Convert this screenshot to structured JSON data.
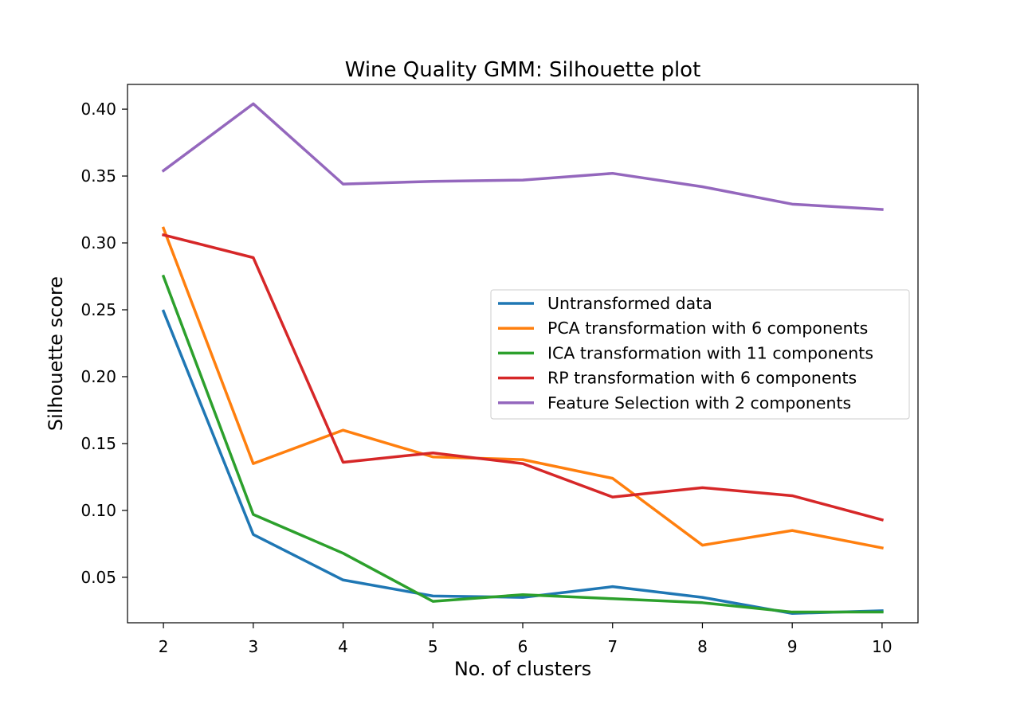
{
  "chart_data": {
    "type": "line",
    "title": "Wine Quality GMM: Silhouette plot",
    "xlabel": "No. of clusters",
    "ylabel": "Silhouette score",
    "x": [
      2,
      3,
      4,
      5,
      6,
      7,
      8,
      9,
      10
    ],
    "xlim": [
      1.6,
      10.4
    ],
    "ylim": [
      0.016,
      0.4185
    ],
    "x_ticks": [
      "2",
      "3",
      "4",
      "5",
      "6",
      "7",
      "8",
      "9",
      "10"
    ],
    "y_ticks": [
      "0.05",
      "0.10",
      "0.15",
      "0.20",
      "0.25",
      "0.30",
      "0.35",
      "0.40"
    ],
    "y_tick_values": [
      0.05,
      0.1,
      0.15,
      0.2,
      0.25,
      0.3,
      0.35,
      0.4
    ],
    "grid": false,
    "legend_position": "center-right",
    "series": [
      {
        "name": "Untransformed data",
        "color": "#1f77b4",
        "values": [
          0.249,
          0.082,
          0.048,
          0.036,
          0.035,
          0.043,
          0.035,
          0.023,
          0.025
        ]
      },
      {
        "name": "PCA transformation with 6 components",
        "color": "#ff7f0e",
        "values": [
          0.311,
          0.135,
          0.16,
          0.14,
          0.138,
          0.124,
          0.074,
          0.085,
          0.072
        ]
      },
      {
        "name": "ICA transformation with 11 components",
        "color": "#2ca02c",
        "values": [
          0.275,
          0.097,
          0.068,
          0.032,
          0.037,
          0.034,
          0.031,
          0.024,
          0.024
        ]
      },
      {
        "name": "RP transformation with 6 components",
        "color": "#d62728",
        "values": [
          0.306,
          0.289,
          0.136,
          0.143,
          0.135,
          0.11,
          0.117,
          0.111,
          0.093
        ]
      },
      {
        "name": "Feature Selection with 2 components",
        "color": "#9467bd",
        "values": [
          0.354,
          0.404,
          0.344,
          0.346,
          0.347,
          0.352,
          0.342,
          0.329,
          0.325
        ]
      }
    ]
  }
}
